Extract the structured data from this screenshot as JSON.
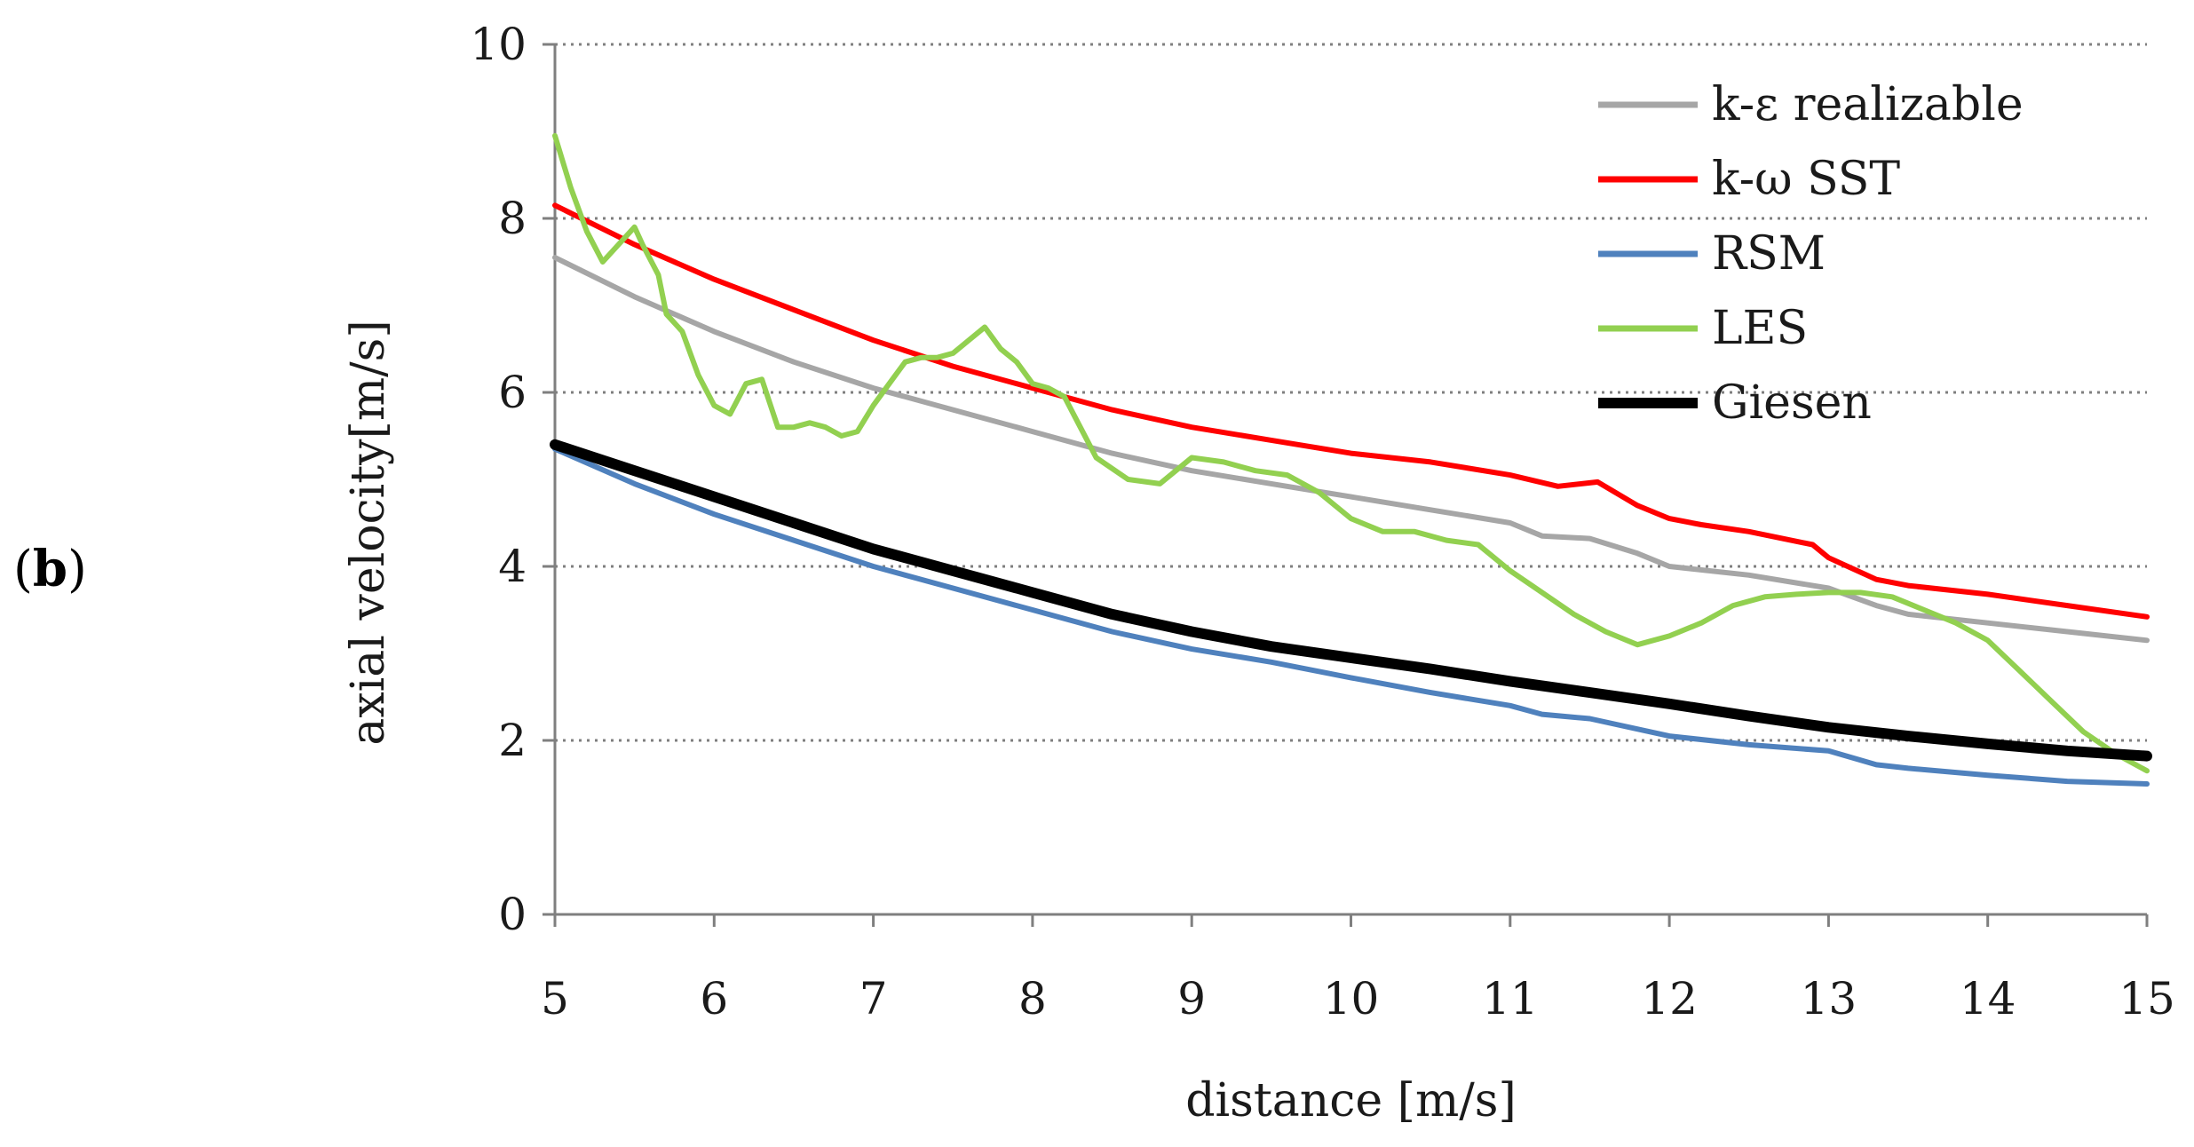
{
  "panel_label": {
    "open": "(",
    "letter": "b",
    "close": ")"
  },
  "chart_data": {
    "type": "line",
    "title": "",
    "xlabel": "distance [m/s]",
    "ylabel": "axial velocity[m/s]",
    "xlim": [
      5,
      15
    ],
    "ylim": [
      0,
      10
    ],
    "xticks": [
      5,
      6,
      7,
      8,
      9,
      10,
      11,
      12,
      13,
      14,
      15
    ],
    "yticks": [
      0,
      2,
      4,
      6,
      8,
      10
    ],
    "grid": "horizontal dotted",
    "legend_position": "top-right",
    "series": [
      {
        "name": "k-ε realizable",
        "color": "#a6a6a6",
        "x": [
          5,
          5.5,
          6,
          6.5,
          7,
          7.5,
          8,
          8.5,
          9,
          9.5,
          10,
          10.5,
          11,
          11.2,
          11.5,
          11.8,
          12,
          12.5,
          13,
          13.3,
          13.5,
          14,
          14.5,
          15
        ],
        "y": [
          7.55,
          7.1,
          6.7,
          6.35,
          6.05,
          5.8,
          5.55,
          5.3,
          5.1,
          4.95,
          4.8,
          4.65,
          4.5,
          4.35,
          4.32,
          4.15,
          4.0,
          3.9,
          3.75,
          3.55,
          3.45,
          3.35,
          3.25,
          3.15
        ]
      },
      {
        "name": "k-ω SST",
        "color": "#ff0000",
        "x": [
          5,
          5.5,
          6,
          6.5,
          7,
          7.5,
          8,
          8.5,
          9,
          9.5,
          10,
          10.5,
          11,
          11.3,
          11.55,
          11.8,
          12,
          12.2,
          12.5,
          12.9,
          13,
          13.3,
          13.5,
          14,
          14.5,
          15
        ],
        "y": [
          8.15,
          7.7,
          7.3,
          6.95,
          6.6,
          6.3,
          6.05,
          5.8,
          5.6,
          5.45,
          5.3,
          5.2,
          5.05,
          4.92,
          4.97,
          4.7,
          4.55,
          4.48,
          4.4,
          4.25,
          4.1,
          3.85,
          3.78,
          3.68,
          3.55,
          3.42
        ]
      },
      {
        "name": "RSM",
        "color": "#4f81bd",
        "x": [
          5,
          5.5,
          6,
          6.5,
          7,
          7.5,
          8,
          8.5,
          9,
          9.5,
          10,
          10.5,
          11,
          11.2,
          11.5,
          12,
          12.5,
          13,
          13.3,
          13.5,
          14,
          14.5,
          15
        ],
        "y": [
          5.35,
          4.95,
          4.6,
          4.3,
          4.0,
          3.75,
          3.5,
          3.25,
          3.05,
          2.9,
          2.72,
          2.55,
          2.4,
          2.3,
          2.25,
          2.05,
          1.95,
          1.88,
          1.72,
          1.68,
          1.6,
          1.53,
          1.5
        ]
      },
      {
        "name": "LES",
        "color": "#92d050",
        "x": [
          5,
          5.1,
          5.2,
          5.3,
          5.4,
          5.5,
          5.55,
          5.65,
          5.7,
          5.8,
          5.9,
          6.0,
          6.1,
          6.2,
          6.3,
          6.4,
          6.5,
          6.6,
          6.7,
          6.8,
          6.9,
          7.0,
          7.1,
          7.2,
          7.3,
          7.4,
          7.5,
          7.6,
          7.7,
          7.8,
          7.9,
          8.0,
          8.1,
          8.2,
          8.3,
          8.4,
          8.6,
          8.8,
          9.0,
          9.2,
          9.4,
          9.6,
          9.8,
          10.0,
          10.2,
          10.4,
          10.6,
          10.8,
          11.0,
          11.2,
          11.4,
          11.6,
          11.8,
          12.0,
          12.2,
          12.4,
          12.6,
          12.8,
          13.0,
          13.2,
          13.4,
          13.6,
          13.8,
          14.0,
          14.2,
          14.4,
          14.6,
          14.8,
          15.0
        ],
        "y": [
          8.95,
          8.35,
          7.85,
          7.5,
          7.7,
          7.9,
          7.7,
          7.35,
          6.9,
          6.7,
          6.2,
          5.85,
          5.75,
          6.1,
          6.15,
          5.6,
          5.6,
          5.65,
          5.6,
          5.5,
          5.55,
          5.85,
          6.1,
          6.35,
          6.4,
          6.4,
          6.45,
          6.6,
          6.75,
          6.5,
          6.35,
          6.1,
          6.05,
          5.95,
          5.6,
          5.25,
          5.0,
          4.95,
          5.25,
          5.2,
          5.1,
          5.05,
          4.85,
          4.55,
          4.4,
          4.4,
          4.3,
          4.25,
          3.95,
          3.7,
          3.45,
          3.25,
          3.1,
          3.2,
          3.35,
          3.55,
          3.65,
          3.68,
          3.7,
          3.7,
          3.65,
          3.5,
          3.35,
          3.15,
          2.8,
          2.45,
          2.1,
          1.85,
          1.65
        ]
      },
      {
        "name": "Giesen",
        "color": "#000000",
        "x": [
          5,
          5.5,
          6,
          6.5,
          7,
          7.5,
          8,
          8.5,
          9,
          9.5,
          10,
          10.5,
          11,
          11.5,
          12,
          12.5,
          13,
          13.5,
          14,
          14.5,
          15
        ],
        "y": [
          5.4,
          5.1,
          4.8,
          4.5,
          4.2,
          3.95,
          3.7,
          3.45,
          3.25,
          3.08,
          2.95,
          2.82,
          2.68,
          2.55,
          2.42,
          2.28,
          2.15,
          2.05,
          1.96,
          1.88,
          1.82
        ]
      }
    ]
  }
}
